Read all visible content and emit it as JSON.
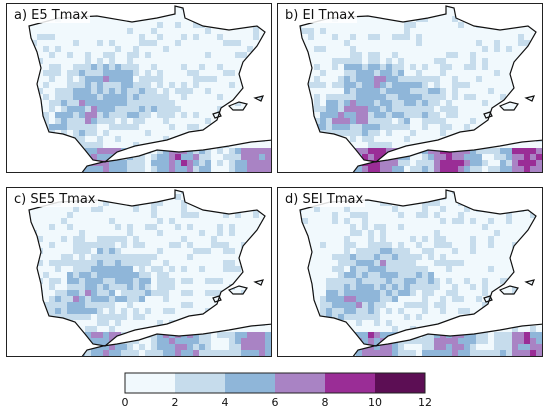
{
  "panels": [
    {
      "id": "a",
      "title": "a) E5 Tmax"
    },
    {
      "id": "b",
      "title": "b) EI Tmax"
    },
    {
      "id": "c",
      "title": "c) SE5 Tmax"
    },
    {
      "id": "d",
      "title": "d) SEI Tmax"
    }
  ],
  "legend": {
    "ticks": [
      "0",
      "2",
      "4",
      "6",
      "8",
      "10",
      "12"
    ],
    "colors": [
      "#f1f9fd",
      "#c6dcec",
      "#8fb6d9",
      "#a983c4",
      "#9a2d96",
      "#5c0e54"
    ]
  },
  "colors": {
    "land_outline": "#111111",
    "sea": "#ffffff"
  }
}
